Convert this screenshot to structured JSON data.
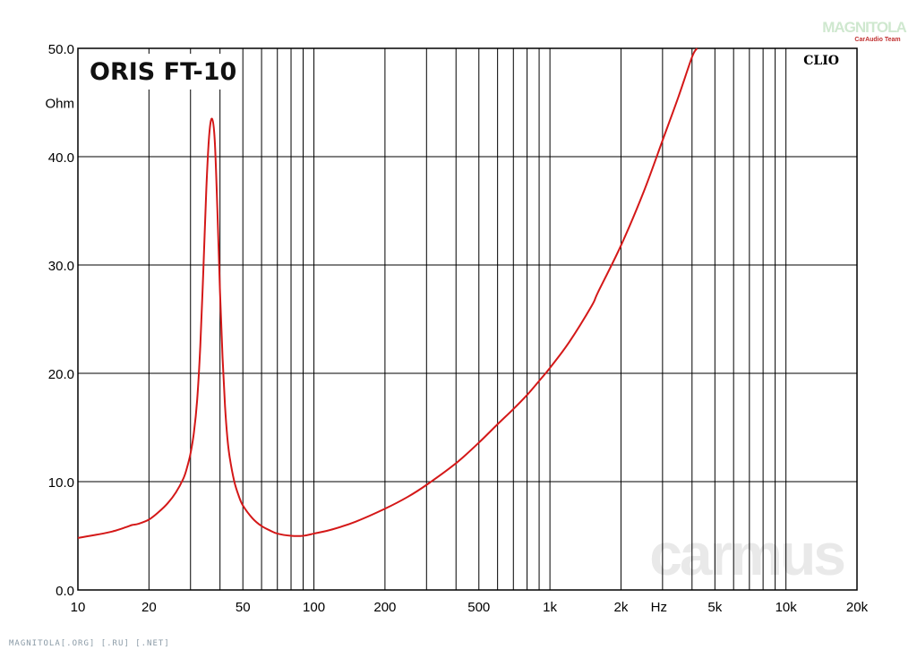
{
  "chart_data": {
    "type": "line",
    "title": "ORIS FT-10",
    "ylabel": "Ohm",
    "xunit": "Hz",
    "xscale": "log",
    "xlim": [
      10,
      20000
    ],
    "ylim": [
      0,
      50
    ],
    "grid": true,
    "yticks": [
      {
        "value": 0,
        "label": "0.0"
      },
      {
        "value": 10,
        "label": "10.0"
      },
      {
        "value": 20,
        "label": "20.0"
      },
      {
        "value": 30,
        "label": "30.0"
      },
      {
        "value": 40,
        "label": "40.0"
      },
      {
        "value": 50,
        "label": "50.0"
      }
    ],
    "xticks": [
      {
        "value": 10,
        "label": "10"
      },
      {
        "value": 20,
        "label": "20"
      },
      {
        "value": 50,
        "label": "50"
      },
      {
        "value": 100,
        "label": "100"
      },
      {
        "value": 200,
        "label": "200"
      },
      {
        "value": 500,
        "label": "500"
      },
      {
        "value": 1000,
        "label": "1k"
      },
      {
        "value": 2000,
        "label": "2k"
      },
      {
        "value": 5000,
        "label": "5k"
      },
      {
        "value": 10000,
        "label": "10k"
      },
      {
        "value": 20000,
        "label": "20k"
      }
    ],
    "xgrid_minor": [
      30,
      40,
      60,
      70,
      80,
      90,
      300,
      400,
      600,
      700,
      800,
      900,
      3000,
      4000,
      6000,
      7000,
      8000,
      9000
    ],
    "series": [
      {
        "color": "#d41818",
        "x": [
          10,
          12,
          14,
          16,
          17,
          18,
          20,
          22,
          24,
          26,
          28,
          29,
          30,
          31,
          32,
          33,
          34,
          35,
          36,
          37,
          38,
          39,
          40,
          41,
          42,
          43,
          44,
          46,
          48,
          50,
          55,
          60,
          65,
          70,
          80,
          90,
          100,
          120,
          150,
          200,
          250,
          300,
          400,
          500,
          600,
          700,
          800,
          900,
          1000,
          1200,
          1500,
          1600,
          2000,
          2500,
          3000,
          3500,
          4000,
          4200
        ],
        "y": [
          4.8,
          5.1,
          5.4,
          5.8,
          6.0,
          6.1,
          6.5,
          7.2,
          8.0,
          9.0,
          10.3,
          11.3,
          12.6,
          14.5,
          17.5,
          22.5,
          29.5,
          37.0,
          42.0,
          43.5,
          41.5,
          35.0,
          27.5,
          21.5,
          17.0,
          14.0,
          12.2,
          10.0,
          8.7,
          7.8,
          6.6,
          5.9,
          5.5,
          5.2,
          5.0,
          5.0,
          5.2,
          5.6,
          6.3,
          7.5,
          8.6,
          9.7,
          11.7,
          13.6,
          15.3,
          16.7,
          18.0,
          19.3,
          20.5,
          22.8,
          26.2,
          27.5,
          31.8,
          36.8,
          41.5,
          45.5,
          49.2,
          50.0
        ]
      }
    ],
    "annotations": [
      "CLIO"
    ],
    "watermarks": [
      "MAGNITOLA",
      "CarAudio Team",
      "carmus"
    ]
  },
  "footer_text": "MAGNITOLA[.ORG] [.RU] [.NET]"
}
